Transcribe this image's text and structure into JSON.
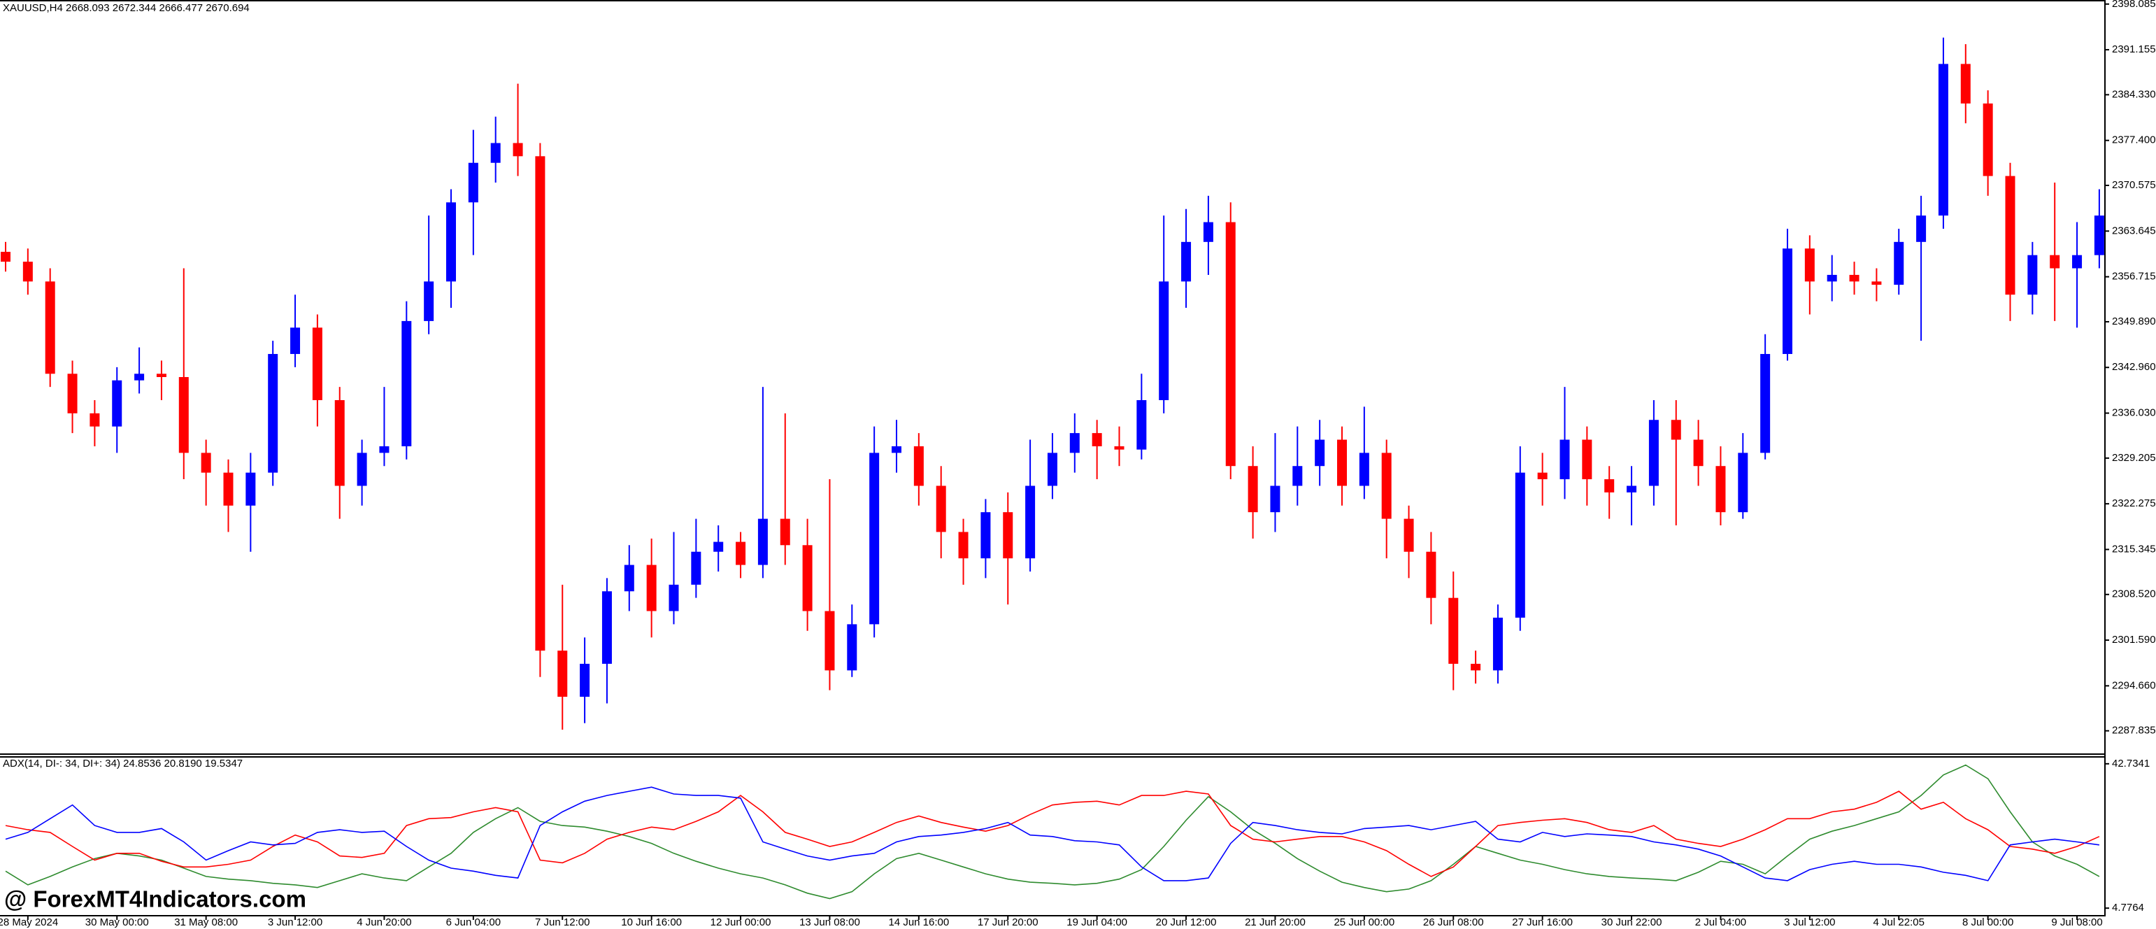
{
  "watermark": "@ ForexMT4Indicators.com",
  "chart_data": [
    {
      "type": "candlestick",
      "title": "XAUUSD,H4  2668.093 2672.344 2666.477 2670.694",
      "bull_color": "#0000ff",
      "bear_color": "#ff0000",
      "ylim": [
        2284.3,
        2398.7
      ],
      "yticks": [
        2398.085,
        2391.155,
        {
          "value": 2384.33,
          "label": "2384.330"
        },
        {
          "value": 2377.4,
          "label": "2377.400"
        },
        2370.575,
        2363.645,
        2356.715,
        {
          "value": 2349.89,
          "label": "2349.890"
        },
        {
          "value": 2342.96,
          "label": "2342.960"
        },
        {
          "value": 2336.03,
          "label": "2336.030"
        },
        2329.205,
        2322.275,
        2315.345,
        {
          "value": 2308.52,
          "label": "2308.520"
        },
        {
          "value": 2301.59,
          "label": "2301.590"
        },
        {
          "value": 2294.66,
          "label": "2294.660"
        },
        2287.835
      ],
      "categories": [
        null,
        "28 May 2024",
        null,
        null,
        null,
        "30 May 00:00",
        null,
        null,
        null,
        "31 May 08:00",
        null,
        null,
        null,
        "3 Jun 12:00",
        null,
        null,
        null,
        "4 Jun 20:00",
        null,
        null,
        null,
        "6 Jun 04:00",
        null,
        null,
        null,
        "7 Jun 12:00",
        null,
        null,
        null,
        "10 Jun 16:00",
        null,
        null,
        null,
        "12 Jun 00:00",
        null,
        null,
        null,
        "13 Jun 08:00",
        null,
        null,
        null,
        "14 Jun 16:00",
        null,
        null,
        null,
        "17 Jun 20:00",
        null,
        null,
        null,
        "19 Jun 04:00",
        null,
        null,
        null,
        "20 Jun 12:00",
        null,
        null,
        null,
        "21 Jun 20:00",
        null,
        null,
        null,
        "25 Jun 00:00",
        null,
        null,
        null,
        "26 Jun 08:00",
        null,
        null,
        null,
        "27 Jun 16:00",
        null,
        null,
        null,
        "30 Jun 22:00",
        null,
        null,
        null,
        "2 Jul 04:00",
        null,
        null,
        null,
        "3 Jul 12:00",
        null,
        null,
        null,
        "4 Jul 22:05",
        null,
        null,
        null,
        "8 Jul 00:00",
        null,
        null,
        null,
        "9 Jul 08:00",
        null
      ],
      "open": [
        2360.5,
        2359,
        2356,
        2342,
        2336,
        2334,
        2341,
        2342,
        2341.5,
        2330,
        2327,
        2322,
        2327,
        2345,
        2349,
        2338,
        2325,
        2330,
        2331,
        2350,
        2356,
        2368,
        2374,
        2377,
        2375,
        2300,
        2293,
        2298,
        2309,
        2313,
        2306,
        2310,
        2315,
        2316.5,
        2313,
        2320,
        2316,
        2306,
        2297,
        2304,
        2330,
        2331,
        2325,
        2318,
        2314,
        2321,
        2314,
        2325,
        2330,
        2333,
        2331,
        2330.5,
        2338,
        2356,
        2362,
        2365,
        2328,
        2321,
        2325,
        2328,
        2332,
        2325,
        2330,
        2320,
        2315,
        2308,
        2298,
        2297,
        2305,
        2327,
        2326,
        2332,
        2326,
        2324,
        2325,
        2335,
        2332,
        2328,
        2321,
        2330,
        2345,
        2361,
        2356,
        2357,
        2356,
        2355.5,
        2362,
        2366,
        2389,
        2383,
        2372,
        2354,
        2360,
        2358,
        2360
      ],
      "high": [
        2362,
        2361,
        2358,
        2344,
        2338,
        2343,
        2346,
        2344,
        2358,
        2332,
        2329,
        2330,
        2347,
        2354,
        2351,
        2340,
        2332,
        2340,
        2353,
        2366,
        2370,
        2379,
        2381,
        2386,
        2377,
        2310,
        2302,
        2311,
        2316,
        2317,
        2318,
        2320,
        2319,
        2318,
        2340,
        2336,
        2320,
        2326,
        2307,
        2334,
        2335,
        2333,
        2328,
        2320,
        2323,
        2324,
        2332,
        2333,
        2336,
        2335,
        2334,
        2342,
        2366,
        2367,
        2369,
        2368,
        2331,
        2333,
        2334,
        2335,
        2334,
        2337,
        2332,
        2322,
        2318,
        2312,
        2300,
        2307,
        2331,
        2330,
        2340,
        2334,
        2328,
        2328,
        2338,
        2338,
        2335,
        2331,
        2333,
        2348,
        2364,
        2363,
        2360,
        2359,
        2358,
        2364,
        2369,
        2393,
        2392,
        2385,
        2374,
        2362,
        2371,
        2365,
        2370
      ],
      "low": [
        2357.5,
        2354,
        2340,
        2333,
        2331,
        2330,
        2339,
        2338,
        2326,
        2322,
        2318,
        2315,
        2325,
        2343,
        2334,
        2320,
        2322,
        2328,
        2329,
        2348,
        2352,
        2360,
        2371,
        2372,
        2296,
        2288,
        2289,
        2292,
        2306,
        2302,
        2304,
        2308,
        2312,
        2311,
        2311,
        2313,
        2303,
        2294,
        2296,
        2302,
        2327,
        2322,
        2314,
        2310,
        2311,
        2307,
        2312,
        2323,
        2327,
        2326,
        2328,
        2329,
        2336,
        2352,
        2357,
        2326,
        2317,
        2318,
        2322,
        2325,
        2322,
        2323,
        2314,
        2311,
        2304,
        2294,
        2295,
        2295,
        2303,
        2322,
        2323,
        2322,
        2320,
        2319,
        2322,
        2319,
        2325,
        2319,
        2320,
        2329,
        2344,
        2351,
        2353,
        2354,
        2353,
        2354,
        2347,
        2364,
        2380,
        2369,
        2350,
        2351,
        2350,
        2349,
        2358
      ],
      "close": [
        2359,
        2356,
        2342,
        2336,
        2334,
        2341,
        2342,
        2341.5,
        2330,
        2327,
        2322,
        2327,
        2345,
        2349,
        2338,
        2325,
        2330,
        2331,
        2350,
        2356,
        2368,
        2374,
        2377,
        2375,
        2300,
        2293,
        2298,
        2309,
        2313,
        2306,
        2310,
        2315,
        2316.5,
        2313,
        2320,
        2316,
        2306,
        2297,
        2304,
        2330,
        2331,
        2325,
        2318,
        2314,
        2321,
        2314,
        2325,
        2330,
        2333,
        2331,
        2330.5,
        2338,
        2356,
        2362,
        2365,
        2328,
        2321,
        2325,
        2328,
        2332,
        2325,
        2330,
        2320,
        2315,
        2308,
        2298,
        2297,
        2305,
        2327,
        2326,
        2332,
        2326,
        2324,
        2325,
        2335,
        2332,
        2328,
        2321,
        2330,
        2345,
        2361,
        2356,
        2357,
        2356,
        2355.5,
        2362,
        2366,
        2389,
        2383,
        2372,
        2354,
        2360,
        2358,
        2360,
        2366
      ]
    },
    {
      "type": "line",
      "title": "ADX(14, DI-: 34, DI+: 34) 24.8536 20.8190 19.5347",
      "ylim": [
        2.97,
        44.54
      ],
      "yticks": [
        42.7341,
        4.7764
      ],
      "series": [
        {
          "color": "#2e8b2e",
          "values": [
            14.5,
            10.9,
            13.1,
            15.6,
            17.8,
            19.2,
            18.5,
            17.4,
            15.3,
            13.1,
            12.4,
            12.0,
            11.3,
            10.9,
            10.2,
            12.0,
            13.8,
            12.7,
            12.0,
            15.6,
            19.2,
            24.7,
            28.3,
            31.2,
            27.6,
            26.5,
            26.1,
            25.0,
            23.6,
            21.8,
            19.2,
            17.1,
            15.3,
            13.8,
            12.7,
            10.9,
            8.7,
            7.3,
            9.1,
            13.8,
            17.8,
            19.2,
            17.4,
            15.6,
            13.8,
            12.4,
            11.6,
            11.3,
            10.9,
            11.3,
            12.4,
            14.9,
            21.0,
            27.9,
            34.1,
            30.1,
            25.4,
            21.8,
            17.8,
            14.5,
            11.6,
            10.2,
            9.1,
            9.8,
            12.0,
            16.3,
            21.0,
            19.2,
            17.4,
            16.3,
            14.9,
            13.8,
            13.1,
            12.7,
            12.4,
            12.0,
            14.2,
            17.1,
            16.3,
            13.8,
            18.5,
            22.9,
            25.0,
            26.5,
            28.3,
            30.1,
            34.4,
            39.8,
            42.4,
            38.8,
            30.1,
            22.2,
            18.5,
            16.3,
            13.1
          ]
        },
        {
          "color": "#ff0000",
          "values": [
            26.5,
            25.4,
            24.7,
            21.0,
            17.4,
            19.2,
            19.2,
            17.1,
            15.6,
            15.6,
            16.3,
            17.4,
            21.0,
            24.0,
            22.2,
            18.5,
            18.1,
            19.2,
            26.5,
            28.3,
            28.6,
            30.1,
            31.2,
            30.1,
            17.4,
            16.7,
            19.2,
            22.9,
            24.7,
            26.1,
            25.4,
            27.6,
            30.1,
            34.4,
            30.1,
            24.7,
            22.9,
            21.0,
            22.2,
            24.7,
            27.3,
            29.0,
            27.3,
            26.1,
            25.0,
            26.5,
            29.4,
            31.9,
            32.6,
            32.9,
            31.9,
            34.4,
            34.4,
            35.5,
            34.8,
            26.5,
            22.9,
            22.2,
            22.9,
            23.6,
            23.6,
            22.2,
            19.9,
            16.3,
            13.1,
            15.6,
            21.0,
            26.5,
            27.3,
            27.9,
            28.3,
            27.3,
            25.4,
            24.7,
            26.5,
            22.9,
            21.8,
            21.0,
            22.9,
            25.4,
            28.3,
            28.3,
            30.1,
            30.8,
            32.6,
            35.5,
            30.8,
            32.6,
            28.3,
            25.4,
            21.0,
            20.3,
            19.2,
            21.0,
            23.6
          ]
        },
        {
          "color": "#0000ff",
          "values": [
            22.9,
            24.7,
            28.3,
            31.9,
            26.5,
            24.7,
            24.7,
            25.7,
            22.2,
            17.4,
            19.9,
            22.2,
            21.4,
            21.8,
            24.7,
            25.4,
            24.7,
            25.0,
            21.0,
            17.4,
            15.3,
            14.5,
            13.4,
            12.7,
            26.5,
            30.1,
            32.9,
            34.4,
            35.5,
            36.6,
            34.8,
            34.4,
            34.4,
            33.7,
            22.2,
            20.3,
            18.5,
            17.4,
            18.5,
            19.2,
            22.2,
            23.6,
            24.0,
            24.7,
            25.7,
            27.3,
            24.0,
            23.6,
            22.5,
            22.2,
            21.4,
            15.6,
            12.0,
            12.0,
            12.7,
            21.8,
            27.3,
            26.5,
            25.4,
            24.7,
            24.3,
            25.7,
            26.1,
            26.5,
            25.4,
            26.5,
            27.6,
            22.9,
            22.2,
            24.7,
            23.6,
            24.3,
            24.0,
            23.6,
            22.2,
            21.4,
            20.3,
            18.5,
            15.6,
            12.7,
            12.0,
            14.9,
            16.3,
            17.1,
            16.3,
            16.3,
            15.6,
            14.2,
            13.4,
            12.0,
            21.4,
            22.2,
            22.9,
            22.2,
            21.4
          ]
        }
      ]
    }
  ]
}
